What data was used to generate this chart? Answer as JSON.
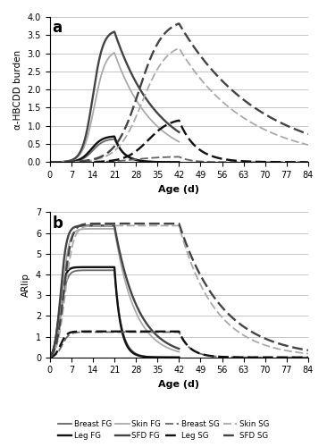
{
  "panel_a": {
    "title": "a",
    "ylabel": "α-HBCDD burden",
    "xlabel": "Age (d)",
    "ylim": [
      0.0,
      4.0
    ],
    "yticks": [
      0.0,
      0.5,
      1.0,
      1.5,
      2.0,
      2.5,
      3.0,
      3.5,
      4.0
    ],
    "xticks": [
      0,
      7,
      14,
      21,
      28,
      35,
      42,
      49,
      56,
      63,
      70,
      77,
      84
    ]
  },
  "panel_b": {
    "title": "b",
    "ylabel": "ARlip",
    "xlabel": "Age (d)",
    "ylim": [
      0,
      7
    ],
    "yticks": [
      0,
      1,
      2,
      3,
      4,
      5,
      6,
      7
    ],
    "xticks": [
      0,
      7,
      14,
      21,
      28,
      35,
      42,
      49,
      56,
      63,
      70,
      77,
      84
    ]
  },
  "colors": {
    "breast": "#666666",
    "leg": "#111111",
    "skin": "#aaaaaa",
    "sfd": "#444444"
  },
  "legend": {
    "entries": [
      "Breast FG",
      "Leg FG",
      "Skin FG",
      "SFD FG",
      "Breast SG",
      "Leg SG",
      "Skin SG",
      "SFD SG"
    ]
  }
}
